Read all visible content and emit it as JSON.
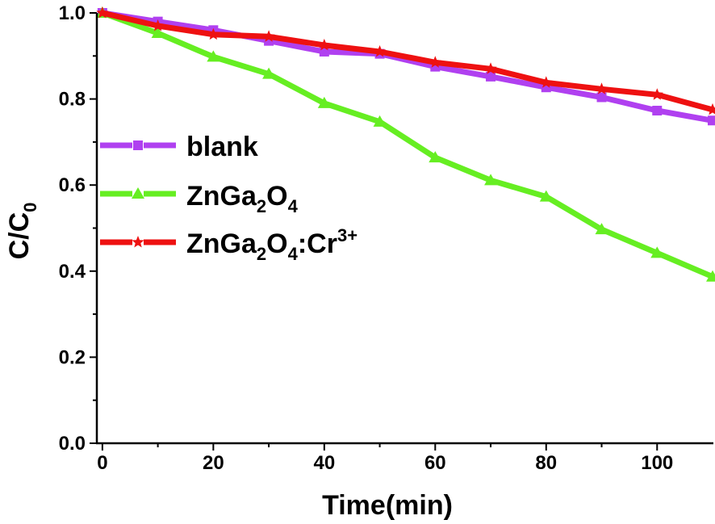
{
  "chart_data": {
    "type": "line",
    "xlabel": "Time(min)",
    "ylabel": {
      "main": "C/C",
      "sub": "0"
    },
    "xlim": [
      -1,
      110
    ],
    "ylim": [
      0.0,
      1.0
    ],
    "xticks": [
      0,
      20,
      40,
      60,
      80,
      100
    ],
    "yticks": [
      0.0,
      0.2,
      0.4,
      0.6,
      0.8,
      1.0
    ],
    "xtick_labels": [
      "0",
      "20",
      "40",
      "60",
      "80",
      "100"
    ],
    "ytick_labels": [
      "0.0",
      "0.2",
      "0.4",
      "0.6",
      "0.8",
      "1.0"
    ],
    "x": [
      0,
      10,
      20,
      30,
      40,
      50,
      60,
      70,
      80,
      90,
      100,
      110
    ],
    "legend_position": "left-middle",
    "series": [
      {
        "key": "blank",
        "name": "blank",
        "color": "#b040f0",
        "marker": "square",
        "values": [
          1.0,
          0.98,
          0.96,
          0.935,
          0.91,
          0.905,
          0.875,
          0.852,
          0.827,
          0.804,
          0.773,
          0.75
        ]
      },
      {
        "key": "zga",
        "name": "ZnGa2O4",
        "color": "#66ee22",
        "marker": "triangle",
        "values": [
          1.0,
          0.953,
          0.898,
          0.858,
          0.79,
          0.747,
          0.664,
          0.611,
          0.573,
          0.497,
          0.442,
          0.387
        ]
      },
      {
        "key": "zgacr",
        "name": "ZnGa2O4:Cr3+",
        "color": "#ee1111",
        "marker": "star",
        "values": [
          1.0,
          0.97,
          0.95,
          0.945,
          0.925,
          0.91,
          0.885,
          0.87,
          0.838,
          0.823,
          0.81,
          0.775
        ]
      }
    ],
    "legend": {
      "blank": {
        "text": "blank"
      },
      "zga": {
        "p1": "ZnGa",
        "s1": "2",
        "p2": "O",
        "s2": "4"
      },
      "zgacr": {
        "p1": "ZnGa",
        "s1": "2",
        "p2": "O",
        "s2": "4",
        "p3": ":Cr",
        "sup": "3+"
      }
    }
  }
}
